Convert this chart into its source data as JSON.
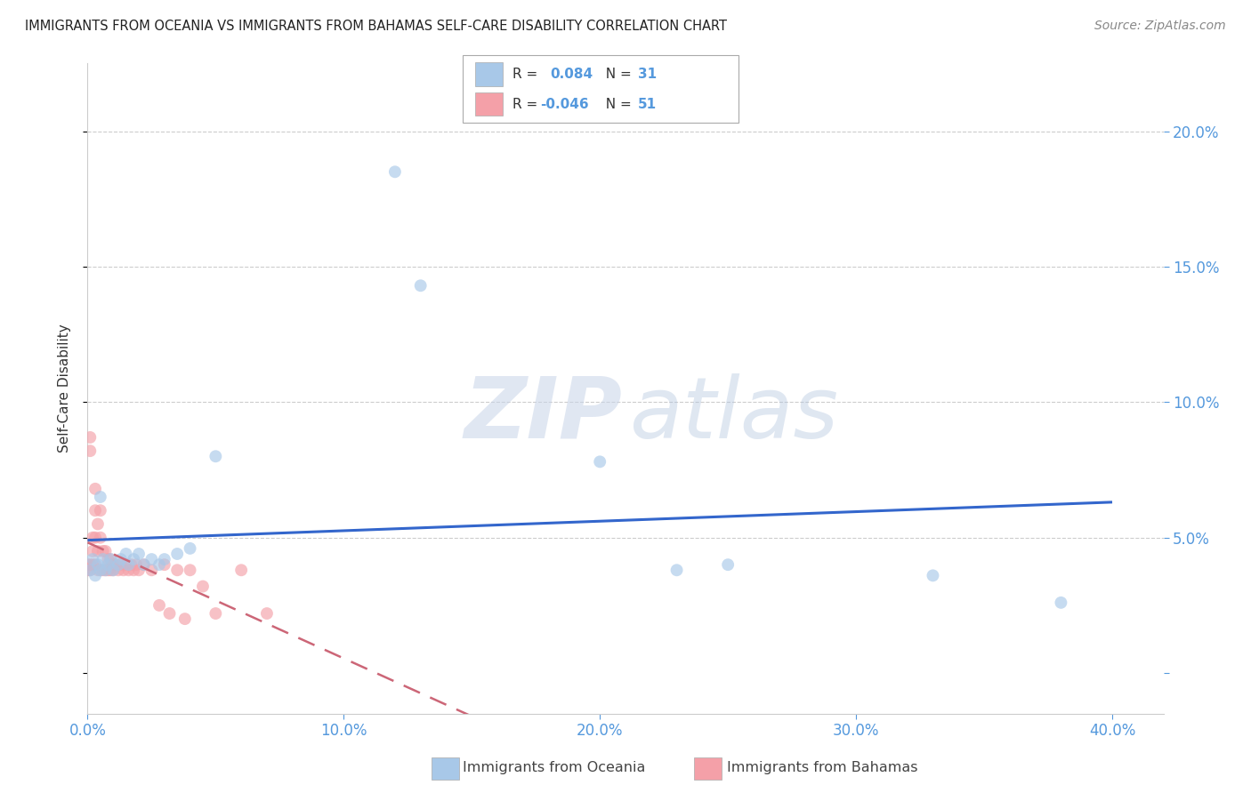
{
  "title": "IMMIGRANTS FROM OCEANIA VS IMMIGRANTS FROM BAHAMAS SELF-CARE DISABILITY CORRELATION CHART",
  "source": "Source: ZipAtlas.com",
  "ylabel": "Self-Care Disability",
  "xlim": [
    0.0,
    0.42
  ],
  "ylim": [
    -0.015,
    0.225
  ],
  "xticks": [
    0.0,
    0.1,
    0.2,
    0.3,
    0.4
  ],
  "xtick_labels": [
    "0.0%",
    "10.0%",
    "20.0%",
    "30.0%",
    "40.0%"
  ],
  "yticks": [
    0.0,
    0.05,
    0.1,
    0.15,
    0.2
  ],
  "ytick_labels_right": [
    "",
    "5.0%",
    "10.0%",
    "15.0%",
    "20.0%"
  ],
  "blue_color": "#a8c8e8",
  "pink_color": "#f4a0a8",
  "blue_line_color": "#3366cc",
  "pink_line_color": "#cc6677",
  "tick_color": "#5599dd",
  "background_color": "#ffffff",
  "grid_color": "#cccccc",
  "oceania_x": [
    0.001,
    0.002,
    0.003,
    0.004,
    0.005,
    0.006,
    0.007,
    0.008,
    0.009,
    0.01,
    0.012,
    0.013,
    0.015,
    0.016,
    0.018,
    0.02,
    0.022,
    0.025,
    0.028,
    0.03,
    0.035,
    0.04,
    0.05,
    0.12,
    0.13,
    0.2,
    0.23,
    0.25,
    0.33,
    0.38,
    0.005
  ],
  "oceania_y": [
    0.038,
    0.042,
    0.036,
    0.04,
    0.038,
    0.042,
    0.038,
    0.04,
    0.042,
    0.038,
    0.04,
    0.042,
    0.044,
    0.04,
    0.042,
    0.044,
    0.04,
    0.042,
    0.04,
    0.042,
    0.044,
    0.046,
    0.08,
    0.185,
    0.143,
    0.078,
    0.038,
    0.04,
    0.036,
    0.026,
    0.065
  ],
  "bahamas_x": [
    0.0,
    0.0,
    0.001,
    0.001,
    0.001,
    0.001,
    0.002,
    0.002,
    0.002,
    0.003,
    0.003,
    0.003,
    0.004,
    0.004,
    0.004,
    0.005,
    0.005,
    0.005,
    0.006,
    0.006,
    0.007,
    0.007,
    0.008,
    0.008,
    0.009,
    0.009,
    0.01,
    0.01,
    0.011,
    0.012,
    0.013,
    0.014,
    0.015,
    0.016,
    0.017,
    0.018,
    0.019,
    0.02,
    0.022,
    0.025,
    0.028,
    0.03,
    0.032,
    0.035,
    0.038,
    0.04,
    0.045,
    0.05,
    0.06,
    0.07,
    0.003
  ],
  "bahamas_y": [
    0.04,
    0.038,
    0.087,
    0.082,
    0.04,
    0.038,
    0.05,
    0.045,
    0.04,
    0.06,
    0.05,
    0.04,
    0.055,
    0.045,
    0.038,
    0.06,
    0.05,
    0.038,
    0.045,
    0.038,
    0.045,
    0.038,
    0.042,
    0.038,
    0.042,
    0.038,
    0.04,
    0.038,
    0.04,
    0.038,
    0.04,
    0.038,
    0.04,
    0.038,
    0.04,
    0.038,
    0.04,
    0.038,
    0.04,
    0.038,
    0.025,
    0.04,
    0.022,
    0.038,
    0.02,
    0.038,
    0.032,
    0.022,
    0.038,
    0.022,
    0.068
  ]
}
